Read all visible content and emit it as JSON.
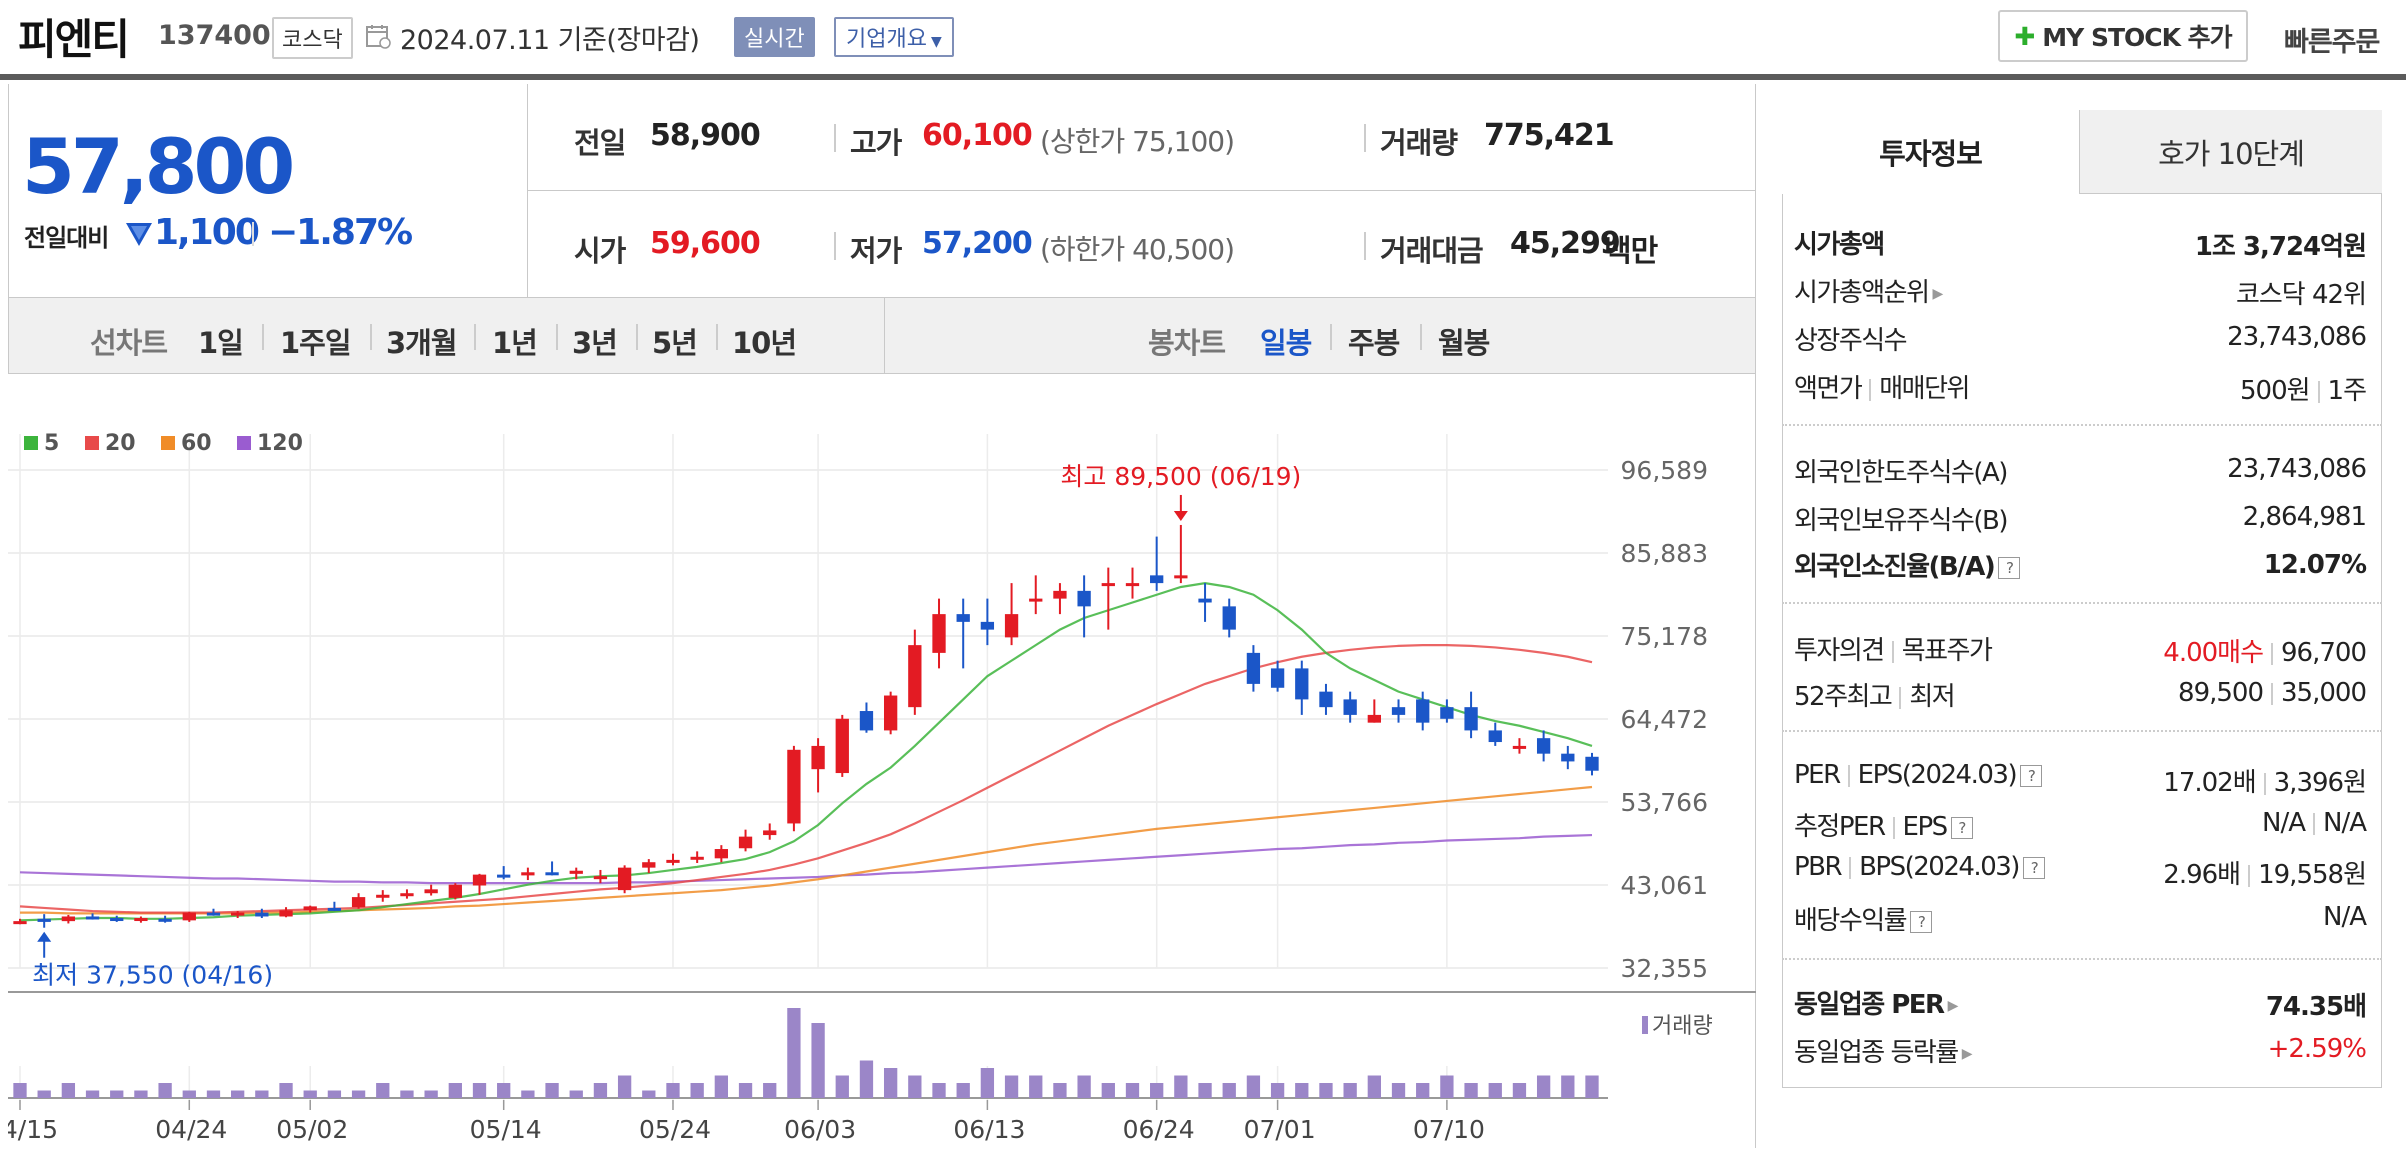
{
  "header": {
    "name": "피엔티",
    "code": "137400",
    "market": "코스닥",
    "date_text": "2024.07.11  기준(장마감)",
    "realtime": "실시간",
    "company_info": "기업개요",
    "mystock": "MY STOCK 추가",
    "quick_order": "빠른주문"
  },
  "price": {
    "current": "57,800",
    "change_label": "전일대비",
    "change_amount": "1,100",
    "change_pct": "−1.87%"
  },
  "summary": {
    "prev_label": "전일",
    "prev": "58,900",
    "high_label": "고가",
    "high": "60,100",
    "upper_limit": "(상한가 75,100)",
    "volume_label": "거래량",
    "volume": "775,421",
    "open_label": "시가",
    "open": "59,600",
    "low_label": "저가",
    "low": "57,200",
    "lower_limit": "(하한가 40,500)",
    "amount_label": "거래대금",
    "amount": "45,299",
    "amount_unit": "백만"
  },
  "tabs": {
    "line_label": "선차트",
    "line_items": [
      "1일",
      "1주일",
      "3개월",
      "1년",
      "3년",
      "5년",
      "10년"
    ],
    "candle_label": "봉차트",
    "candle_items": [
      "일봉",
      "주봉",
      "월봉"
    ]
  },
  "right_panel": {
    "tab_invest": "투자정보",
    "tab_hoga": "호가 10단계",
    "mcap_label": "시가총액",
    "mcap": "1조 3,724억원",
    "mcap_rank_label": "시가총액순위",
    "mcap_rank": "코스닥 42위",
    "shares_label": "상장주식수",
    "shares": "23,743,086",
    "par_label": "액면가",
    "unit_label": "매매단위",
    "par": "500원",
    "unit": "1주",
    "foreign_limit_label": "외국인한도주식수(A)",
    "foreign_limit": "23,743,086",
    "foreign_hold_label": "외국인보유주식수(B)",
    "foreign_hold": "2,864,981",
    "foreign_ratio_label": "외국인소진율(B/A)",
    "foreign_ratio": "12.07%",
    "opinion_label": "투자의견",
    "target_label": "목표주가",
    "opinion": "4.00매수",
    "target": "96,700",
    "w52_label": "52주최고",
    "w52_low_label": "최저",
    "w52_high": "89,500",
    "w52_low": "35,000",
    "per_label": "PER",
    "eps_label": "EPS(2024.03)",
    "per": "17.02배",
    "eps": "3,396원",
    "est_per_label": "추정PER",
    "est_eps_label": "EPS",
    "est_per": "N/A",
    "est_eps": "N/A",
    "pbr_label": "PBR",
    "bps_label": "BPS(2024.03)",
    "pbr": "2.96배",
    "bps": "19,558원",
    "div_label": "배당수익률",
    "div": "N/A",
    "ind_per_label": "동일업종 PER",
    "ind_per": "74.35배",
    "ind_chg_label": "동일업종 등락률",
    "ind_chg": "+2.59%"
  },
  "chart_data": {
    "type": "candlestick",
    "legend": [
      {
        "name": "5",
        "color": "#3cb43c"
      },
      {
        "name": "20",
        "color": "#e84a4a"
      },
      {
        "name": "60",
        "color": "#f08c28"
      },
      {
        "name": "120",
        "color": "#9a5cd0"
      }
    ],
    "y_ticks": [
      "96,589",
      "85,883",
      "75,178",
      "64,472",
      "53,766",
      "43,061",
      "32,355"
    ],
    "ylim": [
      32355,
      96589
    ],
    "x_ticks": [
      "04/15",
      "04/24",
      "05/02",
      "05/14",
      "05/24",
      "06/03",
      "06/13",
      "06/24",
      "07/01",
      "07/10"
    ],
    "annot_high": "최고 89,500 (06/19)",
    "annot_low": "최저 37,550 (04/16)",
    "volume_label": "거래량",
    "candles": [
      [
        38300,
        38700,
        38000,
        38400
      ],
      [
        38700,
        39300,
        37550,
        38300
      ],
      [
        38400,
        39200,
        38100,
        39000
      ],
      [
        39000,
        39400,
        38600,
        38800
      ],
      [
        38800,
        39100,
        38300,
        38600
      ],
      [
        38600,
        39000,
        38200,
        38800
      ],
      [
        38700,
        39100,
        38200,
        38500
      ],
      [
        38500,
        39600,
        38300,
        39500
      ],
      [
        39500,
        40000,
        39100,
        39200
      ],
      [
        39200,
        39700,
        38800,
        39500
      ],
      [
        39500,
        40000,
        38800,
        39000
      ],
      [
        39000,
        40200,
        38900,
        39800
      ],
      [
        39800,
        40400,
        39500,
        40300
      ],
      [
        40100,
        40900,
        39700,
        40000
      ],
      [
        40200,
        42000,
        40000,
        41500
      ],
      [
        41500,
        42400,
        40900,
        41800
      ],
      [
        41700,
        42500,
        41300,
        42000
      ],
      [
        42000,
        43100,
        41700,
        42500
      ],
      [
        41400,
        43300,
        41200,
        43100
      ],
      [
        43000,
        44500,
        41800,
        44400
      ],
      [
        44400,
        45500,
        43800,
        44200
      ],
      [
        44300,
        45300,
        43700,
        44700
      ],
      [
        44700,
        46100,
        44300,
        44400
      ],
      [
        44500,
        45300,
        43800,
        44900
      ],
      [
        44000,
        45000,
        43300,
        44200
      ],
      [
        42400,
        45600,
        42000,
        45300
      ],
      [
        45300,
        46400,
        44600,
        46000
      ],
      [
        46100,
        47100,
        45600,
        46300
      ],
      [
        46500,
        47400,
        45900,
        46700
      ],
      [
        46500,
        48200,
        46000,
        47700
      ],
      [
        47800,
        50200,
        47400,
        49300
      ],
      [
        49500,
        51000,
        48900,
        50100
      ],
      [
        51000,
        61000,
        50000,
        60500
      ],
      [
        58000,
        62000,
        55000,
        61000
      ],
      [
        57500,
        65000,
        57000,
        64500
      ],
      [
        65500,
        66600,
        62700,
        63000
      ],
      [
        63000,
        68000,
        62500,
        67500
      ],
      [
        66000,
        76000,
        65000,
        74000
      ],
      [
        73000,
        80000,
        71000,
        78000
      ],
      [
        78000,
        80000,
        71000,
        77000
      ],
      [
        77000,
        80000,
        74000,
        76000
      ],
      [
        75000,
        82000,
        74000,
        78000
      ],
      [
        80000,
        83000,
        78000,
        80000
      ],
      [
        80000,
        82000,
        78000,
        81000
      ],
      [
        81000,
        83000,
        75000,
        79000
      ],
      [
        82000,
        84000,
        76000,
        82000
      ],
      [
        82000,
        84000,
        80000,
        82000
      ],
      [
        83000,
        88000,
        81000,
        82000
      ],
      [
        83000,
        89500,
        82000,
        83000
      ],
      [
        80000,
        82000,
        77000,
        79500
      ],
      [
        79000,
        80000,
        75000,
        76000
      ],
      [
        73000,
        74000,
        68000,
        69000
      ],
      [
        71000,
        72000,
        68000,
        68500
      ],
      [
        71000,
        72000,
        65000,
        67000
      ],
      [
        68000,
        69000,
        65000,
        66000
      ],
      [
        67000,
        68000,
        64000,
        65000
      ],
      [
        64000,
        67000,
        64000,
        65000
      ],
      [
        66000,
        67000,
        64000,
        65000
      ],
      [
        67000,
        68000,
        63000,
        64000
      ],
      [
        66000,
        67000,
        64000,
        64500
      ],
      [
        66000,
        68000,
        62000,
        63000
      ],
      [
        63000,
        64000,
        61000,
        61500
      ],
      [
        61000,
        62000,
        60000,
        61000
      ],
      [
        62000,
        63000,
        59000,
        60000
      ],
      [
        60000,
        61000,
        58000,
        59000
      ],
      [
        59600,
        60100,
        57200,
        57800
      ]
    ],
    "volume": [
      2,
      1,
      2,
      1,
      1,
      1,
      2,
      1,
      1,
      1,
      1,
      2,
      1,
      1,
      1,
      2,
      1,
      1,
      2,
      2,
      2,
      1,
      2,
      1,
      2,
      3,
      1,
      2,
      2,
      3,
      2,
      2,
      12,
      10,
      3,
      5,
      4,
      3,
      2,
      2,
      4,
      3,
      3,
      2,
      3,
      2,
      2,
      2,
      3,
      2,
      2,
      3,
      2,
      2,
      2,
      2,
      3,
      2,
      2,
      3,
      2,
      2,
      2,
      3,
      3,
      3
    ],
    "ma5": [
      38500,
      38600,
      38700,
      38800,
      38800,
      38700,
      38700,
      38800,
      38900,
      39100,
      39200,
      39300,
      39400,
      39600,
      39800,
      40200,
      40600,
      41000,
      41400,
      41900,
      42500,
      43100,
      43600,
      44000,
      44200,
      44300,
      44600,
      45000,
      45400,
      45900,
      46400,
      47300,
      48700,
      50800,
      53600,
      56100,
      58200,
      61000,
      64000,
      67000,
      70000,
      72000,
      74000,
      76000,
      77500,
      78500,
      79500,
      80500,
      81500,
      82000,
      81500,
      80500,
      78500,
      76000,
      73000,
      71000,
      69500,
      68000,
      67000,
      66000,
      65000,
      64200,
      63600,
      62800,
      62000,
      61000
    ],
    "ma20": [
      40300,
      40100,
      39900,
      39700,
      39600,
      39500,
      39500,
      39500,
      39500,
      39600,
      39700,
      39800,
      39900,
      40000,
      40100,
      40300,
      40500,
      40700,
      40900,
      41100,
      41300,
      41600,
      41900,
      42200,
      42500,
      42700,
      43000,
      43300,
      43700,
      44100,
      44500,
      45000,
      45700,
      46500,
      47500,
      48500,
      49600,
      51000,
      52500,
      54000,
      55600,
      57200,
      58800,
      60400,
      62000,
      63600,
      65000,
      66400,
      67700,
      69000,
      70000,
      71000,
      71800,
      72500,
      73000,
      73400,
      73700,
      73900,
      74000,
      74000,
      73900,
      73700,
      73400,
      73000,
      72500,
      71800
    ],
    "ma60": [
      39500,
      39500,
      39400,
      39400,
      39400,
      39400,
      39400,
      39400,
      39400,
      39400,
      39500,
      39500,
      39600,
      39700,
      39800,
      39900,
      40000,
      40100,
      40300,
      40400,
      40600,
      40800,
      41000,
      41200,
      41400,
      41600,
      41800,
      42000,
      42200,
      42400,
      42700,
      43000,
      43400,
      43800,
      44300,
      44800,
      45300,
      45800,
      46300,
      46800,
      47300,
      47800,
      48300,
      48700,
      49100,
      49500,
      49900,
      50300,
      50600,
      50900,
      51200,
      51500,
      51800,
      52100,
      52400,
      52700,
      53000,
      53300,
      53600,
      53900,
      54200,
      54500,
      54800,
      55100,
      55400,
      55700
    ],
    "ma120": [
      44700,
      44600,
      44500,
      44400,
      44300,
      44200,
      44100,
      44000,
      43900,
      43900,
      43800,
      43700,
      43600,
      43500,
      43500,
      43400,
      43400,
      43300,
      43300,
      43300,
      43300,
      43300,
      43300,
      43300,
      43300,
      43400,
      43400,
      43500,
      43600,
      43700,
      43800,
      43900,
      44000,
      44100,
      44300,
      44400,
      44600,
      44700,
      44900,
      45100,
      45300,
      45500,
      45700,
      45900,
      46100,
      46300,
      46500,
      46700,
      46900,
      47100,
      47300,
      47500,
      47700,
      47800,
      48000,
      48200,
      48300,
      48500,
      48600,
      48800,
      48900,
      49000,
      49100,
      49300,
      49400,
      49500
    ]
  }
}
